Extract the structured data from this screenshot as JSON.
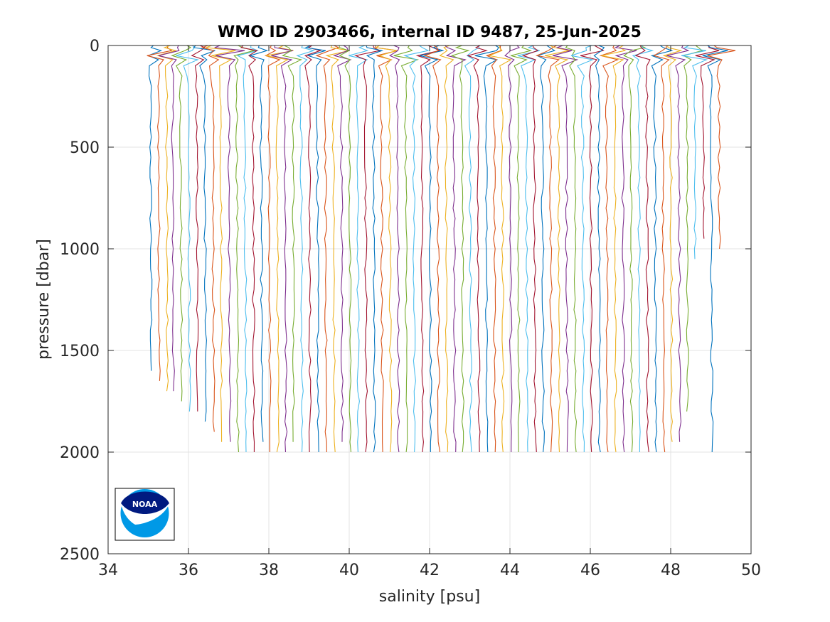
{
  "chart_data": {
    "type": "line",
    "title": "WMO ID 2903466, internal ID 9487, 25-Jun-2025",
    "xlabel": "salinity [psu]",
    "ylabel": "pressure [dbar]",
    "xlim": [
      34,
      50
    ],
    "ylim": [
      0,
      2500
    ],
    "y_reversed": true,
    "grid": true,
    "xticks": [
      34,
      36,
      38,
      40,
      42,
      44,
      46,
      48,
      50
    ],
    "yticks": [
      0,
      500,
      1000,
      1500,
      2000,
      2500
    ],
    "xtick_labels": [
      "34",
      "36",
      "38",
      "40",
      "42",
      "44",
      "46",
      "48",
      "50"
    ],
    "ytick_labels": [
      "0",
      "500",
      "1000",
      "1500",
      "2000",
      "2500"
    ],
    "series_colors": [
      "#0072BD",
      "#D95319",
      "#EDB120",
      "#7E2F8E",
      "#77AC30",
      "#4DBEEE",
      "#A2142F"
    ],
    "profiles": {
      "note_shape": "Each profile: surface salinity variation 0-100 dbar then near-constant deep value",
      "start_values": [
        35.05,
        35.25,
        35.45,
        35.6,
        35.8,
        36.0,
        36.2,
        36.4,
        36.6,
        36.8,
        37.0,
        37.2,
        37.4,
        37.6,
        37.8,
        38.0,
        38.2,
        38.4,
        38.6,
        38.8,
        39.0,
        39.2,
        39.4,
        39.6,
        39.8,
        40.0,
        40.2,
        40.4,
        40.6,
        40.8,
        41.0,
        41.2,
        41.4,
        41.6,
        41.8,
        42.0,
        42.2,
        42.4,
        42.6,
        42.8,
        43.0,
        43.2,
        43.4,
        43.6,
        43.8,
        44.0,
        44.2,
        44.4,
        44.6,
        44.8,
        45.0,
        45.2,
        45.4,
        45.6,
        45.8,
        46.0,
        46.2,
        46.4,
        46.6,
        46.8,
        47.0,
        47.2,
        47.4,
        47.6,
        47.8,
        48.0,
        48.2,
        48.4,
        48.6,
        48.8,
        49.0,
        49.2
      ],
      "max_depths": [
        1600,
        1650,
        1700,
        1700,
        1750,
        1800,
        1800,
        1850,
        1900,
        1950,
        1950,
        2000,
        2000,
        2000,
        1950,
        2000,
        2000,
        2000,
        1950,
        2000,
        2000,
        2000,
        2000,
        2000,
        1950,
        2000,
        2000,
        2000,
        2000,
        2000,
        2000,
        2000,
        2000,
        2000,
        2000,
        2000,
        2000,
        2000,
        2000,
        2000,
        2000,
        2000,
        2000,
        2000,
        2000,
        2000,
        2000,
        2000,
        2000,
        2000,
        2000,
        2000,
        2000,
        2000,
        2000,
        2000,
        2000,
        2000,
        2000,
        2000,
        2000,
        2000,
        2000,
        2000,
        2000,
        1950,
        1950,
        1800,
        1050,
        950,
        2000,
        1000
      ]
    }
  }
}
